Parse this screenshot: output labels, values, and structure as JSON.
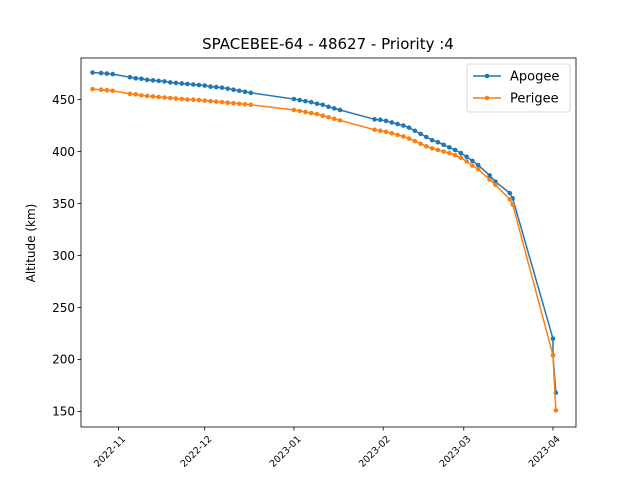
{
  "chart_data": {
    "type": "line",
    "title": "SPACEBEE-64 - 48627 - Priority :4",
    "xlabel": "",
    "ylabel": "Altitude (km)",
    "x_ticks": [
      "2022-11",
      "2022-12",
      "2023-01",
      "2023-02",
      "2023-03",
      "2023-04"
    ],
    "y_ticks": [
      150,
      200,
      250,
      300,
      350,
      400,
      450
    ],
    "xlim": [
      "2022-10-19",
      "2023-04-09"
    ],
    "ylim": [
      135,
      490
    ],
    "legend_position": "top-right",
    "grid": false,
    "series": [
      {
        "name": "Apogee",
        "color": "#1f77b4",
        "points": [
          [
            "2022-10-23",
            476
          ],
          [
            "2022-10-26",
            475.5
          ],
          [
            "2022-10-28",
            475
          ],
          [
            "2022-10-30",
            474.5
          ],
          [
            "2022-11-05",
            471.5
          ],
          [
            "2022-11-07",
            470.5
          ],
          [
            "2022-11-09",
            470
          ],
          [
            "2022-11-11",
            469
          ],
          [
            "2022-11-13",
            468.5
          ],
          [
            "2022-11-15",
            468
          ],
          [
            "2022-11-17",
            467.5
          ],
          [
            "2022-11-19",
            466.5
          ],
          [
            "2022-11-21",
            466
          ],
          [
            "2022-11-23",
            465.5
          ],
          [
            "2022-11-25",
            465
          ],
          [
            "2022-11-27",
            464.5
          ],
          [
            "2022-11-29",
            464
          ],
          [
            "2022-12-01",
            463.5
          ],
          [
            "2022-12-03",
            462.5
          ],
          [
            "2022-12-05",
            462
          ],
          [
            "2022-12-07",
            461.5
          ],
          [
            "2022-12-09",
            460.5
          ],
          [
            "2022-12-11",
            459.5
          ],
          [
            "2022-12-13",
            458.5
          ],
          [
            "2022-12-15",
            457.5
          ],
          [
            "2022-12-17",
            456.5
          ],
          [
            "2023-01-01",
            450.5
          ],
          [
            "2023-01-03",
            449.5
          ],
          [
            "2023-01-05",
            448.5
          ],
          [
            "2023-01-07",
            447.5
          ],
          [
            "2023-01-09",
            446
          ],
          [
            "2023-01-11",
            445
          ],
          [
            "2023-01-13",
            443
          ],
          [
            "2023-01-15",
            441.5
          ],
          [
            "2023-01-17",
            440
          ],
          [
            "2023-01-29",
            431
          ],
          [
            "2023-01-31",
            430.5
          ],
          [
            "2023-02-02",
            429.5
          ],
          [
            "2023-02-04",
            428
          ],
          [
            "2023-02-06",
            426.5
          ],
          [
            "2023-02-08",
            425
          ],
          [
            "2023-02-10",
            423
          ],
          [
            "2023-02-12",
            420
          ],
          [
            "2023-02-14",
            417
          ],
          [
            "2023-02-16",
            414
          ],
          [
            "2023-02-18",
            411
          ],
          [
            "2023-02-20",
            409
          ],
          [
            "2023-02-22",
            406.5
          ],
          [
            "2023-02-24",
            404
          ],
          [
            "2023-02-26",
            401.5
          ],
          [
            "2023-02-28",
            398.5
          ],
          [
            "2023-03-02",
            395
          ],
          [
            "2023-03-04",
            391
          ],
          [
            "2023-03-06",
            387
          ],
          [
            "2023-03-10",
            377
          ],
          [
            "2023-03-12",
            371
          ],
          [
            "2023-03-17",
            360
          ],
          [
            "2023-03-18",
            355
          ],
          [
            "2023-04-01",
            220
          ],
          [
            "2023-04-01",
            204
          ],
          [
            "2023-04-02",
            168
          ]
        ]
      },
      {
        "name": "Perigee",
        "color": "#ff7f0e",
        "points": [
          [
            "2022-10-23",
            460
          ],
          [
            "2022-10-26",
            459.5
          ],
          [
            "2022-10-28",
            459
          ],
          [
            "2022-10-30",
            458.5
          ],
          [
            "2022-11-05",
            455.5
          ],
          [
            "2022-11-07",
            455
          ],
          [
            "2022-11-09",
            454
          ],
          [
            "2022-11-11",
            453.5
          ],
          [
            "2022-11-13",
            453
          ],
          [
            "2022-11-15",
            452.5
          ],
          [
            "2022-11-17",
            452
          ],
          [
            "2022-11-19",
            451.5
          ],
          [
            "2022-11-21",
            451
          ],
          [
            "2022-11-23",
            450.5
          ],
          [
            "2022-11-25",
            450
          ],
          [
            "2022-11-27",
            450
          ],
          [
            "2022-11-29",
            449.5
          ],
          [
            "2022-12-01",
            449
          ],
          [
            "2022-12-03",
            448.5
          ],
          [
            "2022-12-05",
            448
          ],
          [
            "2022-12-07",
            447.5
          ],
          [
            "2022-12-09",
            447
          ],
          [
            "2022-12-11",
            446.5
          ],
          [
            "2022-12-13",
            446
          ],
          [
            "2022-12-15",
            445.5
          ],
          [
            "2022-12-17",
            445
          ],
          [
            "2023-01-01",
            440
          ],
          [
            "2023-01-03",
            439
          ],
          [
            "2023-01-05",
            438
          ],
          [
            "2023-01-07",
            437
          ],
          [
            "2023-01-09",
            436
          ],
          [
            "2023-01-11",
            434.5
          ],
          [
            "2023-01-13",
            433
          ],
          [
            "2023-01-15",
            431.5
          ],
          [
            "2023-01-17",
            430
          ],
          [
            "2023-01-29",
            421
          ],
          [
            "2023-01-31",
            420
          ],
          [
            "2023-02-02",
            419
          ],
          [
            "2023-02-04",
            417.5
          ],
          [
            "2023-02-06",
            416
          ],
          [
            "2023-02-08",
            414.5
          ],
          [
            "2023-02-10",
            412.5
          ],
          [
            "2023-02-12",
            410
          ],
          [
            "2023-02-14",
            407.5
          ],
          [
            "2023-02-16",
            405
          ],
          [
            "2023-02-18",
            403
          ],
          [
            "2023-02-20",
            401.5
          ],
          [
            "2023-02-22",
            400
          ],
          [
            "2023-02-24",
            398.5
          ],
          [
            "2023-02-26",
            396.5
          ],
          [
            "2023-02-28",
            394
          ],
          [
            "2023-03-02",
            390.5
          ],
          [
            "2023-03-04",
            386.5
          ],
          [
            "2023-03-06",
            383
          ],
          [
            "2023-03-10",
            373
          ],
          [
            "2023-03-12",
            368
          ],
          [
            "2023-03-17",
            354
          ],
          [
            "2023-03-18",
            349
          ],
          [
            "2023-04-01",
            204
          ],
          [
            "2023-04-02",
            151
          ]
        ]
      }
    ]
  }
}
